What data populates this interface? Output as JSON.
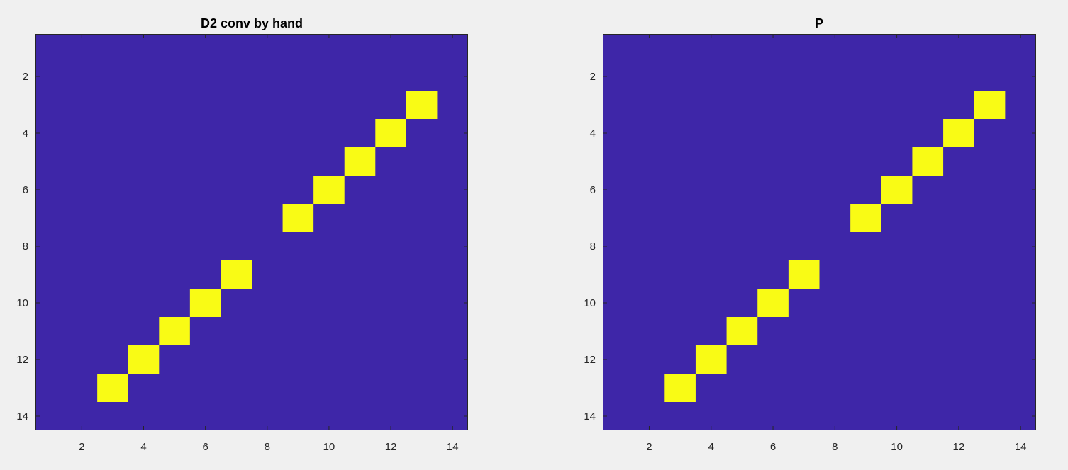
{
  "colors": {
    "background": "#f0f0f0",
    "zero": "#3e26a8",
    "one": "#f9fb15",
    "axis": "#262626"
  },
  "chart_data": [
    {
      "type": "heatmap",
      "title": "D2 conv by hand",
      "xlabel": "",
      "ylabel": "",
      "xlim": [
        0.5,
        14.5
      ],
      "ylim": [
        0.5,
        14.5
      ],
      "y_direction": "reverse",
      "x_ticks": [
        2,
        4,
        6,
        8,
        10,
        12,
        14
      ],
      "y_ticks": [
        2,
        4,
        6,
        8,
        10,
        12,
        14
      ],
      "background_value": 0,
      "nonzero_value": 1,
      "nonzero_cells": [
        {
          "x": 13,
          "y": 3
        },
        {
          "x": 12,
          "y": 4
        },
        {
          "x": 11,
          "y": 5
        },
        {
          "x": 10,
          "y": 6
        },
        {
          "x": 9,
          "y": 7
        },
        {
          "x": 7,
          "y": 9
        },
        {
          "x": 6,
          "y": 10
        },
        {
          "x": 5,
          "y": 11
        },
        {
          "x": 4,
          "y": 12
        },
        {
          "x": 3,
          "y": 13
        }
      ],
      "grid": false,
      "legend": "none"
    },
    {
      "type": "heatmap",
      "title": "P",
      "xlabel": "",
      "ylabel": "",
      "xlim": [
        0.5,
        14.5
      ],
      "ylim": [
        0.5,
        14.5
      ],
      "y_direction": "reverse",
      "x_ticks": [
        2,
        4,
        6,
        8,
        10,
        12,
        14
      ],
      "y_ticks": [
        2,
        4,
        6,
        8,
        10,
        12,
        14
      ],
      "background_value": 0,
      "nonzero_value": 1,
      "nonzero_cells": [
        {
          "x": 13,
          "y": 3
        },
        {
          "x": 12,
          "y": 4
        },
        {
          "x": 11,
          "y": 5
        },
        {
          "x": 10,
          "y": 6
        },
        {
          "x": 9,
          "y": 7
        },
        {
          "x": 7,
          "y": 9
        },
        {
          "x": 6,
          "y": 10
        },
        {
          "x": 5,
          "y": 11
        },
        {
          "x": 4,
          "y": 12
        },
        {
          "x": 3,
          "y": 13
        }
      ],
      "grid": false,
      "legend": "none"
    }
  ]
}
